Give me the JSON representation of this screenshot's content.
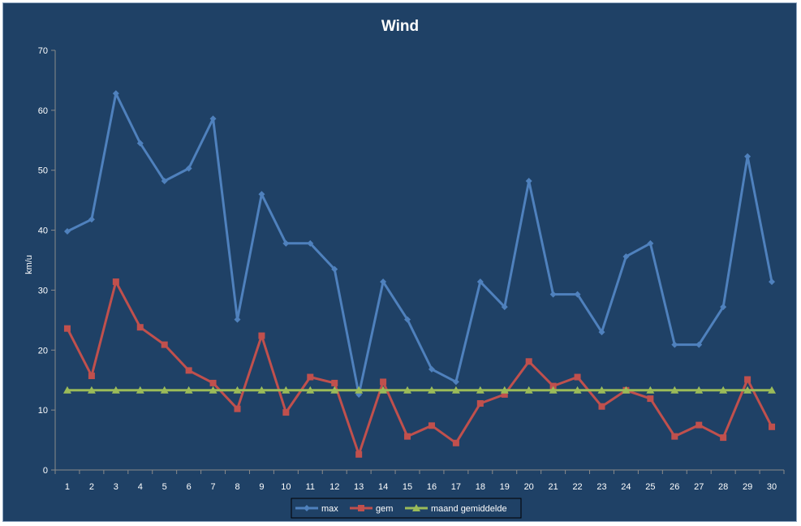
{
  "chart_data": {
    "type": "line",
    "title": "Wind",
    "xlabel": "",
    "ylabel": "km/u",
    "ylim": [
      0,
      70
    ],
    "yticks": [
      0,
      10,
      20,
      30,
      40,
      50,
      60,
      70
    ],
    "categories": [
      "1",
      "2",
      "3",
      "4",
      "5",
      "6",
      "7",
      "8",
      "9",
      "10",
      "11",
      "12",
      "13",
      "14",
      "15",
      "16",
      "17",
      "18",
      "19",
      "20",
      "21",
      "22",
      "23",
      "24",
      "25",
      "26",
      "27",
      "28",
      "29",
      "30"
    ],
    "grid": false,
    "legend_position": "bottom",
    "series": [
      {
        "name": "max",
        "color": "#4f81bd",
        "marker": "diamond",
        "values": [
          39.8,
          41.8,
          62.8,
          54.5,
          48.2,
          50.3,
          58.6,
          25.1,
          46.0,
          37.8,
          37.8,
          33.5,
          12.6,
          31.4,
          25.1,
          16.8,
          14.7,
          31.4,
          27.2,
          48.2,
          29.3,
          29.3,
          23.0,
          35.6,
          37.8,
          20.9,
          20.9,
          27.2,
          52.3,
          31.4
        ]
      },
      {
        "name": "gem",
        "color": "#c0504d",
        "marker": "square",
        "values": [
          23.6,
          15.7,
          31.4,
          23.8,
          20.9,
          16.6,
          14.5,
          10.2,
          22.4,
          9.6,
          15.5,
          14.5,
          2.6,
          14.7,
          5.6,
          7.4,
          4.5,
          11.1,
          12.6,
          18.1,
          14.0,
          15.5,
          10.6,
          13.3,
          11.9,
          5.6,
          7.5,
          5.4,
          15.1,
          7.2
        ]
      },
      {
        "name": "maand gemiddelde",
        "color": "#9bbb59",
        "marker": "triangle",
        "values": [
          13.3,
          13.3,
          13.3,
          13.3,
          13.3,
          13.3,
          13.3,
          13.3,
          13.3,
          13.3,
          13.3,
          13.3,
          13.3,
          13.3,
          13.3,
          13.3,
          13.3,
          13.3,
          13.3,
          13.3,
          13.3,
          13.3,
          13.3,
          13.3,
          13.3,
          13.3,
          13.3,
          13.3,
          13.3,
          13.3
        ]
      }
    ]
  }
}
